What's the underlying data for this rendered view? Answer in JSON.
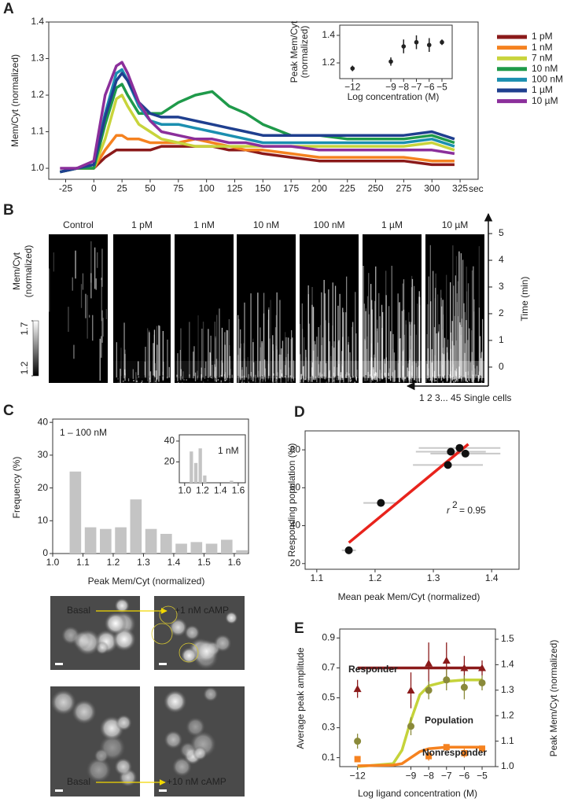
{
  "panel_labels": [
    "A",
    "B",
    "C",
    "D",
    "E"
  ],
  "chart_data": [
    {
      "type": "line",
      "xlabel": "sec",
      "ylabel": "Mem/Cyt (normalized)",
      "legend": "outside right",
      "x": [
        -30,
        -15,
        0,
        10,
        20,
        25,
        30,
        40,
        50,
        60,
        75,
        90,
        105,
        120,
        135,
        150,
        175,
        200,
        225,
        250,
        275,
        300,
        320
      ],
      "xlim": [
        -40,
        341
      ],
      "xticks": [
        -25,
        0,
        25,
        50,
        75,
        100,
        125,
        150,
        175,
        200,
        225,
        250,
        275,
        300,
        325
      ],
      "ylim": [
        0.97,
        1.4
      ],
      "yticks": [
        {
          "value": 1,
          "label": "1.0"
        },
        1.1,
        1.2,
        1.3,
        1.4
      ],
      "series": [
        {
          "name": "1 pM",
          "color": "#8b1a1a",
          "values": [
            0.99,
            1.0,
            1.0,
            1.03,
            1.05,
            1.05,
            1.05,
            1.05,
            1.05,
            1.06,
            1.06,
            1.06,
            1.06,
            1.05,
            1.05,
            1.04,
            1.03,
            1.02,
            1.02,
            1.02,
            1.02,
            1.01,
            1.01
          ]
        },
        {
          "name": "1 nM",
          "color": "#f58220",
          "values": [
            0.99,
            1.0,
            1.0,
            1.05,
            1.09,
            1.09,
            1.08,
            1.08,
            1.07,
            1.07,
            1.07,
            1.08,
            1.07,
            1.06,
            1.05,
            1.05,
            1.04,
            1.03,
            1.03,
            1.03,
            1.03,
            1.02,
            1.02
          ]
        },
        {
          "name": "7 nM",
          "color": "#c8d43c",
          "values": [
            0.99,
            1.0,
            1.0,
            1.08,
            1.19,
            1.2,
            1.17,
            1.12,
            1.1,
            1.08,
            1.07,
            1.06,
            1.06,
            1.06,
            1.06,
            1.06,
            1.06,
            1.06,
            1.06,
            1.06,
            1.06,
            1.07,
            1.05
          ]
        },
        {
          "name": "10 nM",
          "color": "#1f9a4a",
          "values": [
            0.99,
            1.0,
            1.0,
            1.12,
            1.22,
            1.23,
            1.2,
            1.15,
            1.15,
            1.15,
            1.18,
            1.2,
            1.21,
            1.17,
            1.15,
            1.12,
            1.09,
            1.09,
            1.08,
            1.08,
            1.08,
            1.09,
            1.07
          ]
        },
        {
          "name": "100 nM",
          "color": "#1b8fb0",
          "values": [
            0.99,
            1.0,
            1.01,
            1.15,
            1.26,
            1.27,
            1.24,
            1.17,
            1.13,
            1.12,
            1.12,
            1.11,
            1.1,
            1.09,
            1.08,
            1.07,
            1.07,
            1.07,
            1.07,
            1.07,
            1.07,
            1.08,
            1.06
          ]
        },
        {
          "name": "1 µM",
          "color": "#1f3f8f",
          "values": [
            0.99,
            1.0,
            1.01,
            1.14,
            1.24,
            1.26,
            1.24,
            1.18,
            1.15,
            1.14,
            1.14,
            1.13,
            1.12,
            1.11,
            1.1,
            1.09,
            1.09,
            1.09,
            1.09,
            1.09,
            1.09,
            1.1,
            1.08
          ]
        },
        {
          "name": "10 µM",
          "color": "#8b2f9b",
          "values": [
            1.0,
            1.0,
            1.02,
            1.2,
            1.28,
            1.29,
            1.26,
            1.18,
            1.13,
            1.1,
            1.09,
            1.08,
            1.08,
            1.07,
            1.07,
            1.06,
            1.06,
            1.05,
            1.05,
            1.05,
            1.05,
            1.05,
            1.04
          ]
        }
      ]
    },
    {
      "type": "scatter",
      "xlabel": "Log concentration (M)",
      "ylabel": [
        "Peak Mem/Cyt",
        "(normalized)"
      ],
      "color": "#222",
      "x": [
        -12,
        -9,
        -8,
        -7,
        -6,
        -5
      ],
      "values": [
        1.16,
        1.21,
        1.32,
        1.35,
        1.33,
        1.35
      ],
      "errors": [
        0.02,
        0.03,
        0.05,
        0.05,
        0.05,
        0.02
      ],
      "xlim": [
        -13,
        -4.2
      ],
      "xticks": [
        {
          "value": -12,
          "label": "−12"
        },
        {
          "value": -9,
          "label": "−9"
        },
        {
          "value": -8,
          "label": "−8"
        },
        {
          "value": -7,
          "label": "−7"
        },
        {
          "value": -6,
          "label": "−6"
        },
        {
          "value": -5,
          "label": "−5"
        }
      ],
      "ylim": [
        1.086,
        1.474
      ],
      "yticks": [
        1.2,
        1.4
      ]
    },
    {
      "type": "histogram",
      "xlabel": "Peak Mem/Cyt (normalized)",
      "ylabel": "Frequency (%)",
      "annotation": "1 – 100 nM",
      "color": "#c4c4c4",
      "bins": [
        1.05,
        1.1,
        1.15,
        1.2,
        1.25,
        1.3,
        1.35,
        1.4,
        1.45,
        1.5,
        1.55,
        1.6,
        1.65
      ],
      "values": [
        25,
        8,
        7.5,
        8,
        16.5,
        7.5,
        6,
        3,
        3.5,
        3,
        4.2,
        1
      ],
      "xlim": [
        1.0,
        1.647
      ],
      "xticks": [
        {
          "value": 1,
          "label": "1.0"
        },
        1.1,
        1.2,
        1.3,
        1.4,
        1.5,
        1.6
      ],
      "ylim": [
        0,
        41
      ],
      "yticks": [
        0,
        10,
        20,
        30,
        40
      ]
    },
    {
      "type": "histogram",
      "annotation": "1 nM",
      "color": "#c4c4c4",
      "bins": [
        1.05,
        1.1,
        1.15,
        1.2,
        1.25,
        1.3,
        1.35,
        1.4,
        1.45,
        1.5,
        1.55,
        1.6
      ],
      "values": [
        30,
        19,
        33,
        7,
        0,
        0,
        0,
        0,
        0,
        2,
        0
      ],
      "xlim": [
        0.94,
        1.68
      ],
      "xticks": [
        {
          "value": 1,
          "label": "1.0"
        },
        1.2,
        1.4,
        1.6
      ],
      "ylim": [
        0,
        46
      ],
      "yticks": [
        20,
        40
      ]
    },
    {
      "type": "scatter",
      "xlabel": "Mean peak Mem/Cyt (normalized)",
      "ylabel": "Responding population (%)",
      "color": "#111",
      "x": [
        1.155,
        1.21,
        1.325,
        1.33,
        1.345,
        1.355
      ],
      "values": [
        27,
        52,
        72,
        79,
        81,
        78
      ],
      "xerr": [
        0.012,
        0.03,
        0.06,
        0.06,
        0.07,
        0.06
      ],
      "fit": {
        "x": [
          1.155,
          1.36
        ],
        "values": [
          31,
          83
        ],
        "color": "#e8231c"
      },
      "annotation": {
        "symbol": "r",
        "power": "2",
        "text": "= 0.95"
      },
      "xlim": [
        1.08,
        1.447
      ],
      "xticks": [
        1.1,
        1.2,
        1.3,
        1.4
      ],
      "ylim": [
        17,
        90
      ],
      "yticks": [
        20,
        40,
        60,
        80
      ]
    },
    {
      "type": "line",
      "xlabel": "Log ligand concentration (M)",
      "ylabel": "Average peak amplitude",
      "y2label": "Peak Mem/Cyt (normalized)",
      "x": [
        -12,
        -9,
        -8,
        -7,
        -6,
        -5
      ],
      "xlim": [
        -13,
        -4.25
      ],
      "xticks": [
        {
          "value": -12,
          "label": "−12"
        },
        {
          "value": -9,
          "label": "−9"
        },
        {
          "value": -8,
          "label": "−8"
        },
        {
          "value": -7,
          "label": "−7"
        },
        {
          "value": -6,
          "label": "−6"
        },
        {
          "value": -5,
          "label": "−5"
        }
      ],
      "ylim": [
        0.04,
        0.96
      ],
      "yticks": [
        0.1,
        0.3,
        0.5,
        0.7,
        0.9
      ],
      "y2lim": [
        1.0,
        1.54
      ],
      "y2ticks": [
        {
          "value": 1,
          "label": "1.0"
        },
        1.1,
        1.2,
        1.3,
        1.4,
        1.5
      ],
      "fit_x": [
        -12,
        -10,
        -9.5,
        -9,
        -8.5,
        -8,
        -7,
        -6,
        -5
      ],
      "series": [
        {
          "name": "Responder",
          "color": "#8b1a1a",
          "marker": "triangle",
          "values": [
            0.56,
            0.55,
            0.73,
            0.75,
            0.7,
            0.7
          ],
          "errors": [
            0.06,
            0.12,
            0.14,
            0.12,
            0.08,
            0.05
          ],
          "fit": [
            0.7,
            0.7,
            0.7,
            0.7,
            0.7,
            0.7,
            0.7,
            0.7,
            0.7
          ]
        },
        {
          "name": "Population",
          "color": "#c5d33a",
          "point_color": "#8a8a3a",
          "marker": "circle",
          "values": [
            0.21,
            0.31,
            0.55,
            0.62,
            0.57,
            0.6
          ],
          "errors": [
            0.05,
            0.06,
            0.06,
            0.07,
            0.08,
            0.05
          ],
          "fit": [
            0.04,
            0.06,
            0.15,
            0.35,
            0.52,
            0.58,
            0.61,
            0.62,
            0.62
          ]
        },
        {
          "name": "Nonresponder",
          "color": "#f58220",
          "marker": "square",
          "values": [
            0.09,
            null,
            0.11,
            0.17,
            0.13,
            0.16
          ],
          "errors": [
            0.02,
            null,
            0.03,
            0.02,
            0.03,
            0.02
          ],
          "fit": [
            0.045,
            0.05,
            0.06,
            0.1,
            0.14,
            0.16,
            0.17,
            0.17,
            0.17
          ]
        }
      ]
    }
  ],
  "panel_b": {
    "columns": [
      "Control",
      "1 pM",
      "1 nM",
      "10 nM",
      "100 nM",
      "1 µM",
      "10 µM"
    ],
    "colorbar": {
      "label": [
        "Mem/Cyt",
        "(normalized)"
      ],
      "lim": [
        1.2,
        1.7
      ],
      "ticks": [
        1.7,
        1.2
      ]
    },
    "time_axis": {
      "label": "Time (min)",
      "lim": [
        -0.68,
        5.65
      ],
      "ticks": [
        0,
        1,
        2,
        3,
        4,
        5
      ]
    },
    "cells_label": "1 2 3... 45 Single cells"
  },
  "micrographs": {
    "labels": [
      "Basal",
      "+1 nM cAMP",
      "Basal",
      "+10 nM cAMP"
    ]
  }
}
